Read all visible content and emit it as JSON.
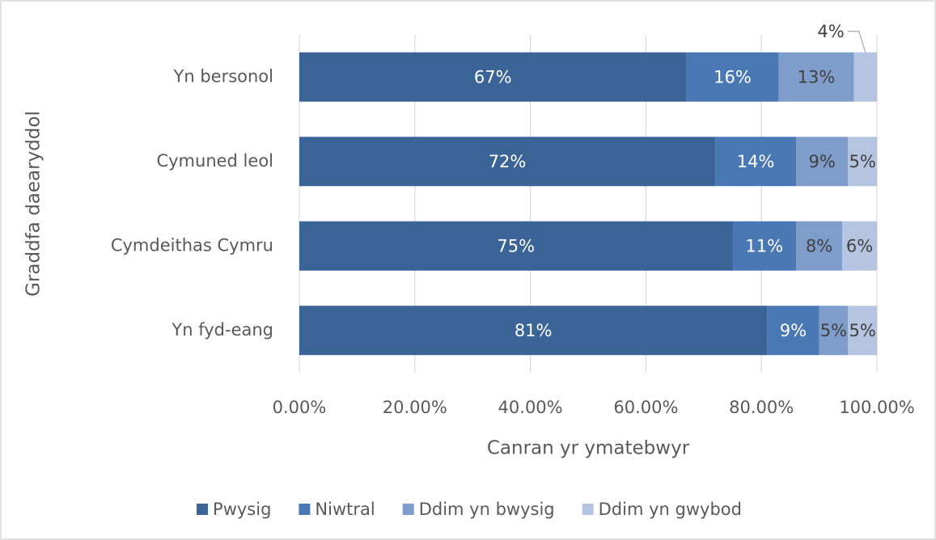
{
  "chart_data": {
    "type": "stacked_bar_horizontal",
    "y_axis_label": "Graddfa daearyddol",
    "x_axis_label": "Canran yr ymatebwyr",
    "categories": [
      "Yn bersonol",
      "Cymuned leol",
      "Cymdeithas Cymru",
      "Yn fyd-eang"
    ],
    "series": [
      {
        "name": "Pwysig",
        "color": "#3b6496",
        "values": [
          67,
          72,
          75,
          81
        ],
        "value_labels": [
          "67%",
          "72%",
          "75%",
          "81%"
        ]
      },
      {
        "name": "Niwtral",
        "color": "#4a78b5",
        "values": [
          16,
          14,
          11,
          9
        ],
        "value_labels": [
          "16%",
          "14%",
          "11%",
          "9%"
        ]
      },
      {
        "name": "Ddim yn bwysig",
        "color": "#7f9dca",
        "values": [
          13,
          9,
          8,
          5
        ],
        "value_labels": [
          "13%",
          "9%",
          "8%",
          "5%"
        ]
      },
      {
        "name": "Ddim yn gwybod",
        "color": "#b5c5e1",
        "values": [
          4,
          5,
          6,
          5
        ],
        "value_labels": [
          "4%",
          "5%",
          "6%",
          "5%"
        ]
      }
    ],
    "xlim": [
      0,
      100
    ],
    "xticks": [
      {
        "value": 0,
        "label": "0.00%"
      },
      {
        "value": 20,
        "label": "20.00%"
      },
      {
        "value": 40,
        "label": "40.00%"
      },
      {
        "value": 60,
        "label": "60.00%"
      },
      {
        "value": 80,
        "label": "80.00%"
      },
      {
        "value": 100,
        "label": "100.00%"
      }
    ],
    "grid": true,
    "legend": "bottom"
  }
}
